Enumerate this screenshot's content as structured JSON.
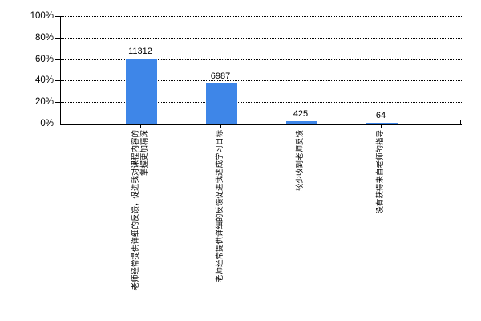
{
  "chart_data": {
    "type": "bar",
    "title": "",
    "xlabel": "",
    "ylabel": "",
    "categories": [
      "老师经常提供详细的反馈，促进我对课程内容的掌握更加精深",
      "老师经常提供详细的反馈促进我达成学习目标",
      "较少收到老师反馈",
      "没有获得来自老师的指导"
    ],
    "values": [
      11312,
      6987,
      425,
      64
    ],
    "value_labels": [
      "11312",
      "6987",
      "425",
      "64"
    ],
    "percentages": [
      60.2,
      37.2,
      2.3,
      0.3
    ],
    "ylim": [
      0,
      100
    ],
    "ytick_labels": [
      "100%",
      "80%",
      "60%",
      "40%",
      "20%",
      "0%"
    ],
    "grid": "dotted-horizontal",
    "legend": "none",
    "bar_color": "#3E86E8",
    "axis_color": "#000000"
  }
}
